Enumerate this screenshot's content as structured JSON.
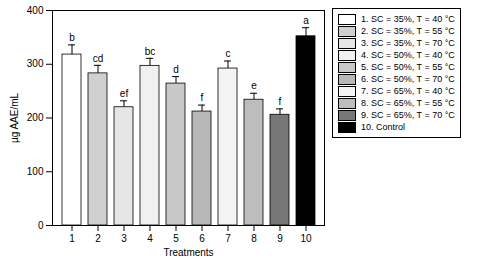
{
  "chart_data": {
    "type": "bar",
    "x_label": "Treatments",
    "y_label": "µg AAE/mL",
    "categories": [
      "1",
      "2",
      "3",
      "4",
      "5",
      "6",
      "7",
      "8",
      "9",
      "10"
    ],
    "values": [
      318,
      283,
      220,
      297,
      264,
      212,
      292,
      234,
      206,
      352
    ],
    "errors": [
      18,
      15,
      12,
      14,
      13,
      12,
      14,
      12,
      11,
      16
    ],
    "annotations": [
      "b",
      "cd",
      "ef",
      "bc",
      "d",
      "f",
      "c",
      "e",
      "f",
      "a"
    ],
    "colors": [
      "#ffffff",
      "#d0d0d0",
      "#e6e6e6",
      "#f0f0f0",
      "#c8c8c8",
      "#b8b8b8",
      "#f4f4f4",
      "#bdbdbd",
      "#777777",
      "#000000"
    ],
    "legend_labels": [
      "1. SC = 35%, T = 40 °C",
      "2. SC = 35%, T = 55 °C",
      "3. SC = 35%, T = 70 °C",
      "4. SC = 50%, T = 40 °C",
      "5. SC = 50%, T = 55 °C",
      "6. SC = 50%, T = 70 °C",
      "7. SC = 65%, T = 40 °C",
      "8. SC = 65%, T = 55 °C",
      "9. SC = 65%, T = 70 °C",
      "10. Control"
    ],
    "legend": "right",
    "ylim": [
      0,
      400
    ],
    "yticks": [
      0,
      100,
      200,
      300,
      400
    ]
  }
}
